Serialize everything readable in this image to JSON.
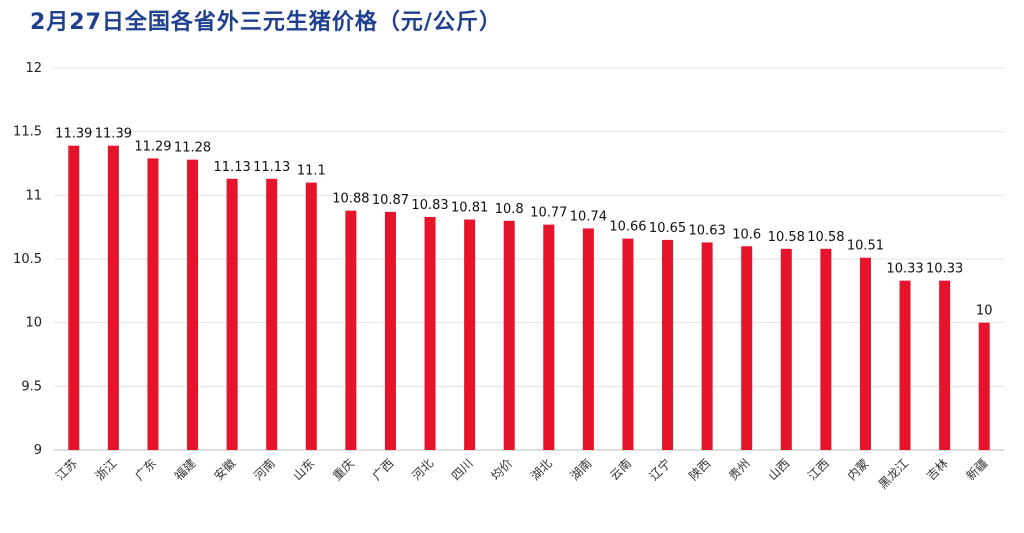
{
  "chart_data": {
    "type": "bar",
    "title": "2月27日全国各省外三元生猪价格（元/公斤）",
    "xlabel": "",
    "ylabel": "",
    "ylim": [
      9,
      12
    ],
    "yticks": [
      "9",
      "9.5",
      "10",
      "10.5",
      "11",
      "11.5",
      "12"
    ],
    "grid": true,
    "bar_color": "#e5142b",
    "categories": [
      "江苏",
      "浙江",
      "广东",
      "福建",
      "安徽",
      "河南",
      "山东",
      "重庆",
      "广西",
      "河北",
      "四川",
      "均价",
      "湖北",
      "湖南",
      "云南",
      "辽宁",
      "陕西",
      "贵州",
      "山西",
      "江西",
      "内蒙",
      "黑龙江",
      "吉林",
      "新疆"
    ],
    "values": [
      11.39,
      11.39,
      11.29,
      11.28,
      11.13,
      11.13,
      11.1,
      10.88,
      10.87,
      10.83,
      10.81,
      10.8,
      10.77,
      10.74,
      10.66,
      10.65,
      10.63,
      10.6,
      10.58,
      10.58,
      10.51,
      10.33,
      10.33,
      10
    ],
    "value_labels": [
      "11.39",
      "11.39",
      "11.29",
      "11.28",
      "11.13",
      "11.13",
      "11.1",
      "10.88",
      "10.87",
      "10.83",
      "10.81",
      "10.8",
      "10.77",
      "10.74",
      "10.66",
      "10.65",
      "10.63",
      "10.6",
      "10.58",
      "10.58",
      "10.51",
      "10.33",
      "10.33",
      "10"
    ]
  }
}
